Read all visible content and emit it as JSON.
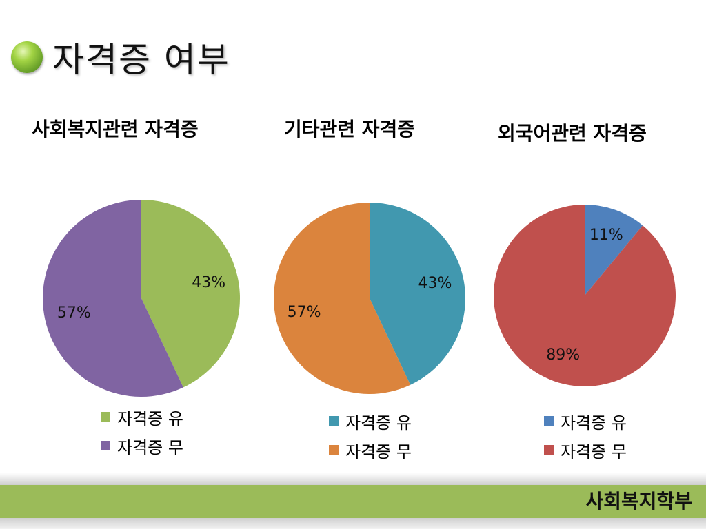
{
  "title": "자격증 여부",
  "footer": "사회복지학부",
  "chart_data": [
    {
      "type": "pie",
      "title": "사회복지관련 자격증",
      "labels": [
        "자격증 유",
        "자격증 무"
      ],
      "values": [
        43,
        57
      ],
      "data_labels": [
        "43%",
        "57%"
      ],
      "colors": [
        "#9bbb59",
        "#8064a2"
      ],
      "legend": "bottom"
    },
    {
      "type": "pie",
      "title": "기타관련 자격증",
      "labels": [
        "자격증 유",
        "자격증 무"
      ],
      "values": [
        43,
        57
      ],
      "data_labels": [
        "43%",
        "57%"
      ],
      "colors": [
        "#4198af",
        "#db843d"
      ],
      "legend": "bottom"
    },
    {
      "type": "pie",
      "title": "외국어관련 자격증",
      "labels": [
        "자격증 유",
        "자격증 무"
      ],
      "values": [
        11,
        89
      ],
      "data_labels": [
        "11%",
        "89%"
      ],
      "colors": [
        "#4f81bd",
        "#c0504d"
      ],
      "legend": "bottom"
    }
  ]
}
